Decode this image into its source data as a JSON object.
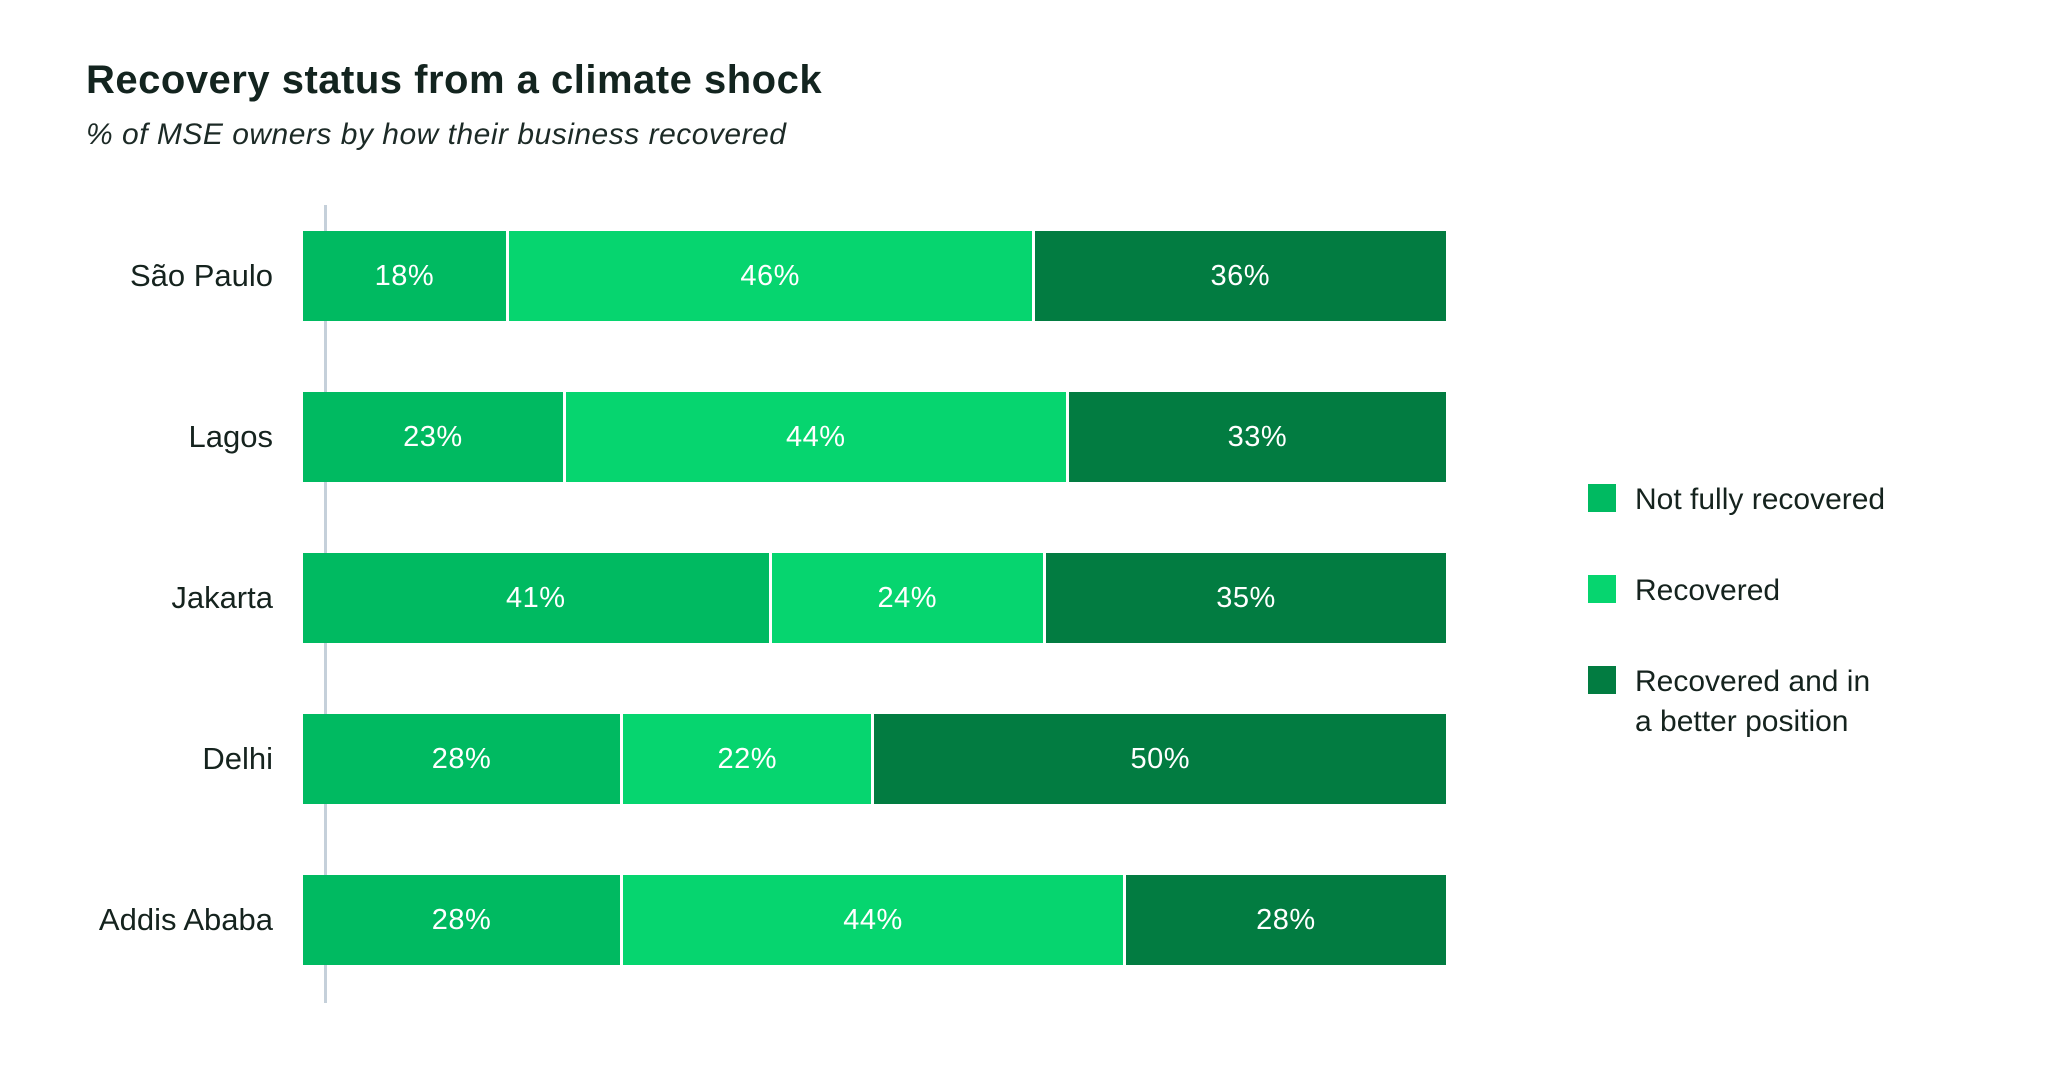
{
  "header": {
    "title": "Recovery status from a climate shock",
    "subtitle": "% of MSE owners by how their business recovered"
  },
  "colors": {
    "series_not_fully_recovered": "#00ba61",
    "series_recovered": "#06d56f",
    "series_recovered_better": "#027c41",
    "axis_line": "#c5d0da",
    "text_dark": "#15231e",
    "value_label": "#ffffff"
  },
  "legend": {
    "items": [
      {
        "color": "#00ba61",
        "lines": [
          "Not fully recovered"
        ]
      },
      {
        "color": "#06d56f",
        "lines": [
          "Recovered"
        ]
      },
      {
        "color": "#027c41",
        "lines": [
          "Recovered and in",
          "a better position"
        ]
      }
    ]
  },
  "chart_data": {
    "type": "bar",
    "orientation": "horizontal",
    "stacked": true,
    "title": "Recovery status from a climate shock",
    "subtitle": "% of MSE owners by how their business recovered",
    "categories": [
      "São Paulo",
      "Lagos",
      "Jakarta",
      "Delhi",
      "Addis Ababa"
    ],
    "series": [
      {
        "name": "Not fully recovered",
        "color": "#00ba61",
        "values": [
          18,
          23,
          41,
          28,
          28
        ]
      },
      {
        "name": "Recovered",
        "color": "#06d56f",
        "values": [
          46,
          44,
          24,
          22,
          44
        ]
      },
      {
        "name": "Recovered and in a better position",
        "color": "#027c41",
        "values": [
          36,
          33,
          35,
          50,
          28
        ]
      }
    ],
    "value_suffix": "%",
    "xlim": [
      0,
      100
    ],
    "grid": false,
    "legend_position": "right",
    "data_labels": "inside-center-white"
  }
}
